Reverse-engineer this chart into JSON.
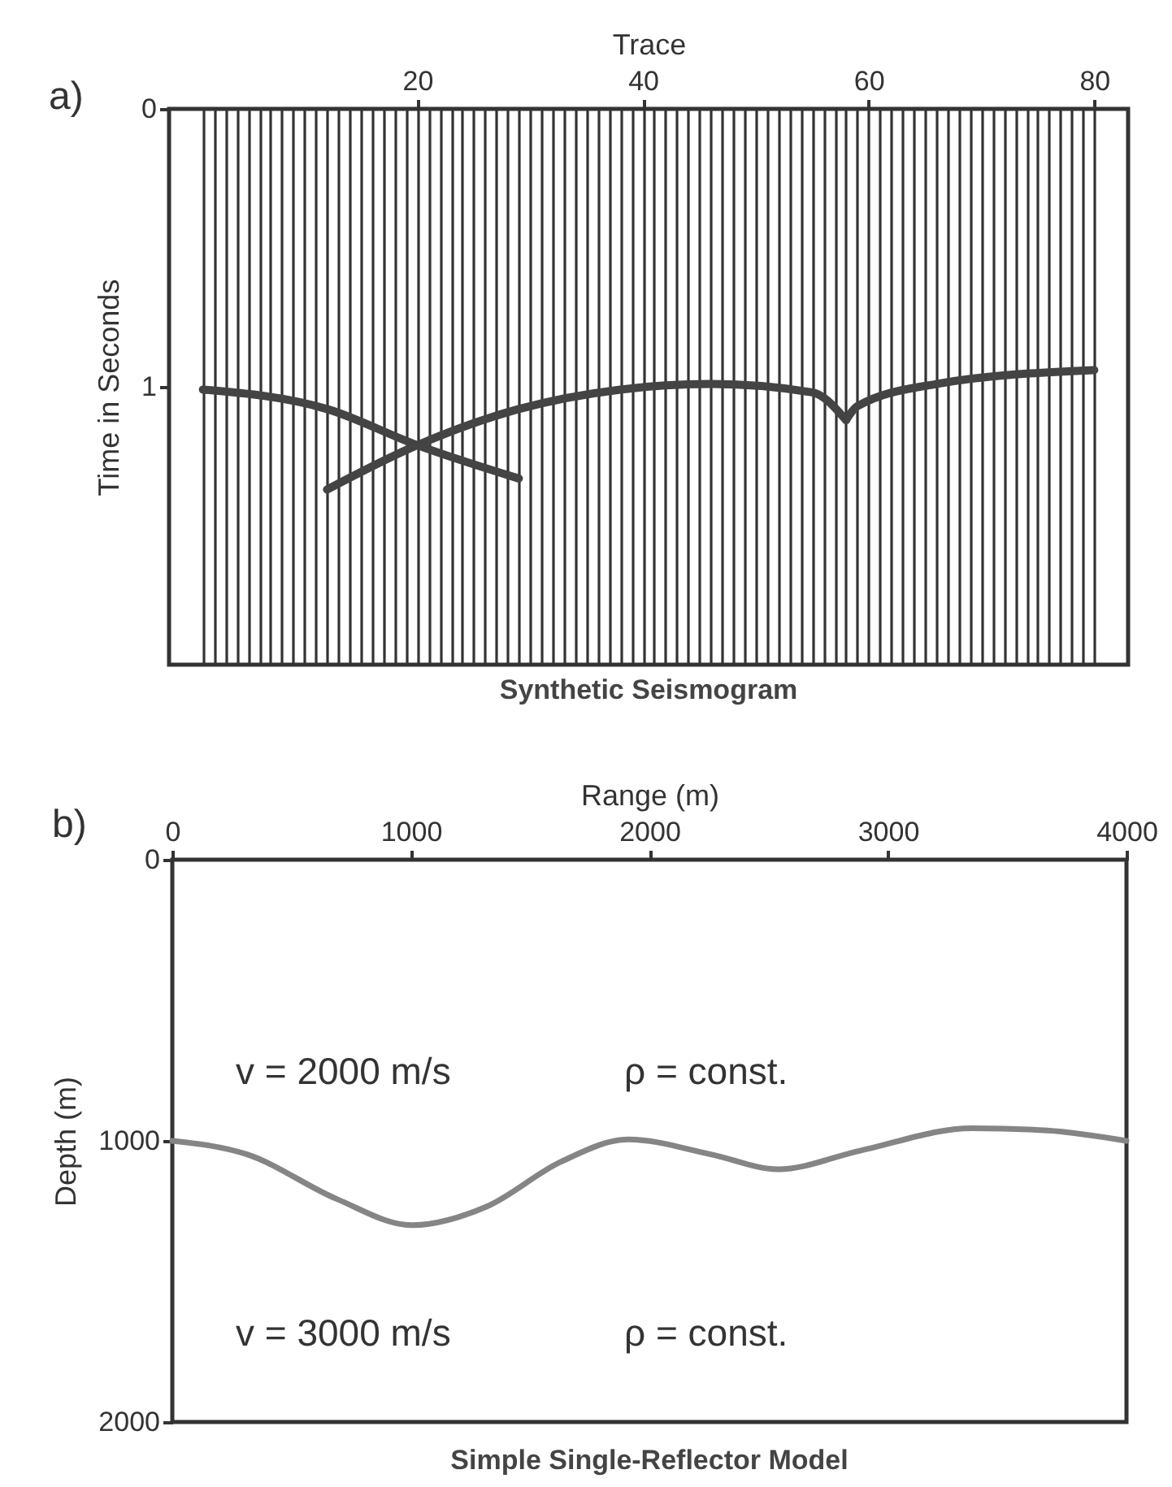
{
  "chart_data": [
    {
      "type": "line",
      "title": "Synthetic Seismogram",
      "xlabel": "Trace",
      "ylabel": "Time in Seconds",
      "annotations": [
        "a)"
      ],
      "xlim": [
        -2,
        83
      ],
      "ylim": [
        2,
        0
      ],
      "yticks": [
        0,
        1
      ],
      "grid": "x",
      "xticks": [
        {
          "value": 1,
          "label": null
        },
        {
          "value": 2,
          "label": null
        },
        {
          "value": 3,
          "label": null
        },
        {
          "value": 4,
          "label": null
        },
        {
          "value": 5,
          "label": null
        },
        {
          "value": 6,
          "label": null
        },
        {
          "value": 7,
          "label": null
        },
        {
          "value": 8,
          "label": null
        },
        {
          "value": 9,
          "label": null
        },
        {
          "value": 10,
          "label": null
        },
        {
          "value": 11,
          "label": null
        },
        {
          "value": 12,
          "label": null
        },
        {
          "value": 13,
          "label": null
        },
        {
          "value": 14,
          "label": null
        },
        {
          "value": 15,
          "label": null
        },
        {
          "value": 16,
          "label": null
        },
        {
          "value": 17,
          "label": null
        },
        {
          "value": 18,
          "label": null
        },
        {
          "value": 19,
          "label": null
        },
        20,
        {
          "value": 21,
          "label": null
        },
        {
          "value": 22,
          "label": null
        },
        {
          "value": 23,
          "label": null
        },
        {
          "value": 24,
          "label": null
        },
        {
          "value": 25,
          "label": null
        },
        {
          "value": 26,
          "label": null
        },
        {
          "value": 27,
          "label": null
        },
        {
          "value": 28,
          "label": null
        },
        {
          "value": 29,
          "label": null
        },
        {
          "value": 30,
          "label": null
        },
        {
          "value": 31,
          "label": null
        },
        {
          "value": 32,
          "label": null
        },
        {
          "value": 33,
          "label": null
        },
        {
          "value": 34,
          "label": null
        },
        {
          "value": 35,
          "label": null
        },
        {
          "value": 36,
          "label": null
        },
        {
          "value": 37,
          "label": null
        },
        {
          "value": 38,
          "label": null
        },
        {
          "value": 39,
          "label": null
        },
        40,
        {
          "value": 41,
          "label": null
        },
        {
          "value": 42,
          "label": null
        },
        {
          "value": 43,
          "label": null
        },
        {
          "value": 44,
          "label": null
        },
        {
          "value": 45,
          "label": null
        },
        {
          "value": 46,
          "label": null
        },
        {
          "value": 47,
          "label": null
        },
        {
          "value": 48,
          "label": null
        },
        {
          "value": 49,
          "label": null
        },
        {
          "value": 50,
          "label": null
        },
        {
          "value": 51,
          "label": null
        },
        {
          "value": 52,
          "label": null
        },
        {
          "value": 53,
          "label": null
        },
        {
          "value": 54,
          "label": null
        },
        {
          "value": 55,
          "label": null
        },
        {
          "value": 56,
          "label": null
        },
        {
          "value": 57,
          "label": null
        },
        {
          "value": 58,
          "label": null
        },
        {
          "value": 59,
          "label": null
        },
        60,
        {
          "value": 61,
          "label": null
        },
        {
          "value": 62,
          "label": null
        },
        {
          "value": 63,
          "label": null
        },
        {
          "value": 64,
          "label": null
        },
        {
          "value": 65,
          "label": null
        },
        {
          "value": 66,
          "label": null
        },
        {
          "value": 67,
          "label": null
        },
        {
          "value": 68,
          "label": null
        },
        {
          "value": 69,
          "label": null
        },
        {
          "value": 70,
          "label": null
        },
        {
          "value": 71,
          "label": null
        },
        {
          "value": 72,
          "label": null
        },
        {
          "value": 73,
          "label": null
        },
        {
          "value": 74,
          "label": null
        },
        {
          "value": 75,
          "label": null
        },
        {
          "value": 76,
          "label": null
        },
        {
          "value": 77,
          "label": null
        },
        {
          "value": 78,
          "label": null
        },
        {
          "value": 79,
          "label": null
        },
        80
      ],
      "series": [
        {
          "color": "#444444",
          "x": [
            1,
            12,
            20,
            29
          ],
          "values": [
            1.01,
            1.08,
            1.21,
            1.33
          ]
        },
        {
          "color": "#444444",
          "x": [
            12,
            20,
            29,
            38,
            46,
            55,
            58
          ],
          "values": [
            1.37,
            1.21,
            1.08,
            1.01,
            0.99,
            1.02,
            1.12
          ]
        },
        {
          "color": "#444444",
          "x": [
            58,
            59,
            66,
            80
          ],
          "values": [
            1.12,
            1.07,
            0.99,
            0.94
          ]
        }
      ]
    },
    {
      "type": "line",
      "title": "Simple Single-Reflector Model",
      "xlabel": "Range (m)",
      "ylabel": "Depth (m)",
      "annotations": [
        "b)",
        "v = 2000 m/s",
        "ρ = const.",
        "v = 3000 m/s",
        "ρ = const."
      ],
      "xlim": [
        0,
        4000
      ],
      "xticks": [
        0,
        1000,
        2000,
        3000,
        4000
      ],
      "ylim": [
        2000,
        0
      ],
      "yticks": [
        0,
        1000,
        2000
      ],
      "x": [
        0,
        313,
        690,
        1003,
        1317,
        1630,
        1912,
        2257,
        2539,
        2884,
        3354,
        3668,
        4000
      ],
      "series": [
        {
          "color": "#858585",
          "values": [
            1000,
            1048,
            1207,
            1300,
            1234,
            1074,
            995,
            1048,
            1101,
            1035,
            955,
            963,
            1000
          ]
        }
      ]
    }
  ]
}
